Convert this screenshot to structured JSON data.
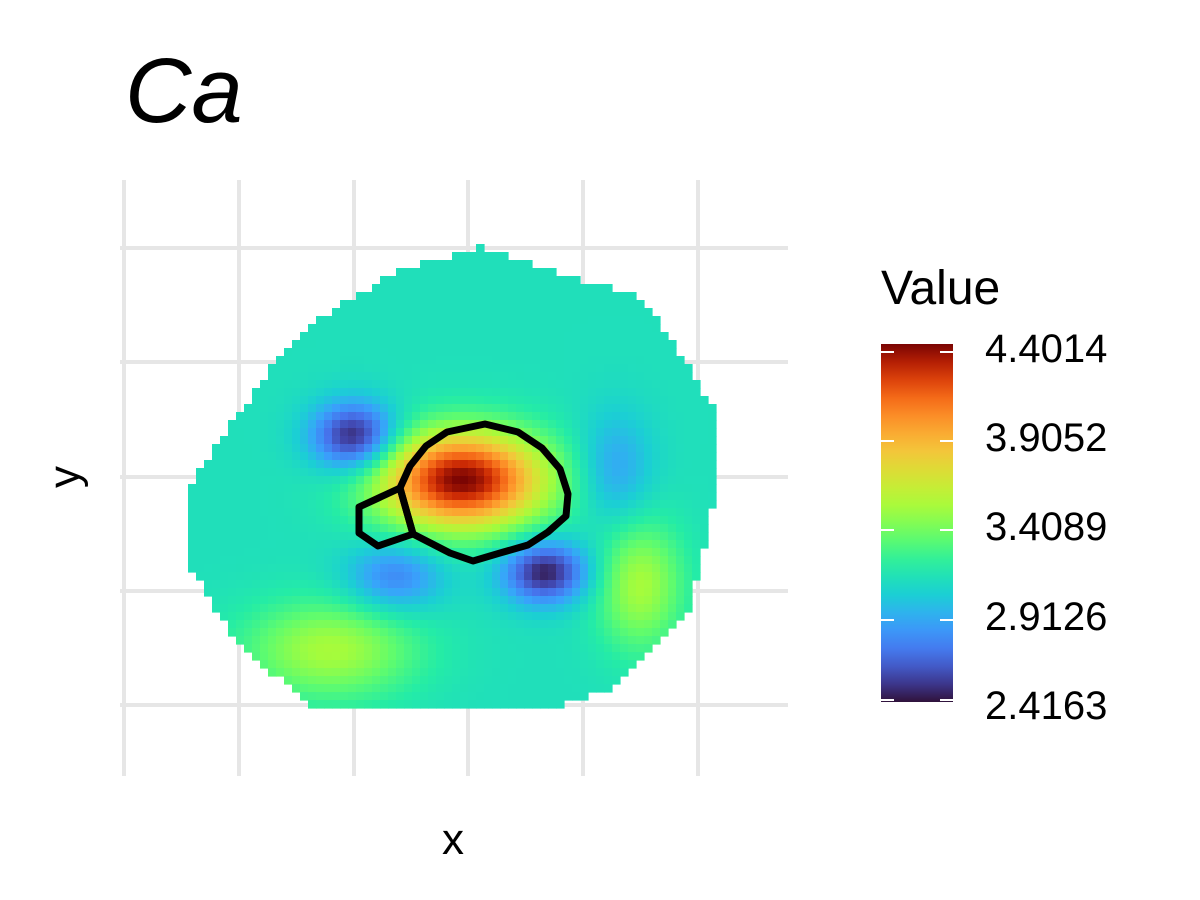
{
  "chart_data": {
    "type": "heatmap",
    "title": "Ca",
    "xlabel": "x",
    "ylabel": "y",
    "grid": true,
    "x_tick_labels": [],
    "y_tick_labels": [],
    "colorscale": "turbo",
    "legend": {
      "title": "Value",
      "placement": "right",
      "min": 2.4163,
      "max": 4.4014,
      "ticks": [
        "4.4014",
        "3.9052",
        "3.4089",
        "2.9126",
        "2.4163"
      ]
    },
    "value_field": {
      "base": 3.1,
      "features": [
        {
          "kind": "high",
          "value": 4.4,
          "label": "central maximum"
        },
        {
          "kind": "low",
          "value": 2.42,
          "label": "upper-left minimum"
        },
        {
          "kind": "low",
          "value": 2.45,
          "label": "lower-right minimum"
        },
        {
          "kind": "low",
          "value": 2.75,
          "label": "lower-left minimum"
        },
        {
          "kind": "low",
          "value": 2.85,
          "label": "right minimum"
        },
        {
          "kind": "high",
          "value": 3.5,
          "label": "lower-left ridge"
        },
        {
          "kind": "high",
          "value": 3.5,
          "label": "lower-right ridge"
        }
      ]
    },
    "outlines": [
      "main-region",
      "small-region"
    ]
  }
}
